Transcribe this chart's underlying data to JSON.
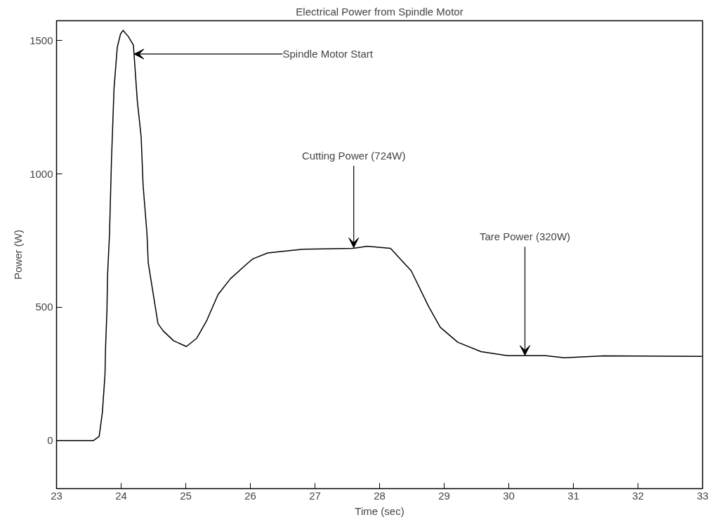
{
  "chart_data": {
    "type": "line",
    "title": "Electrical Power from Spindle Motor",
    "xlabel": "Time (sec)",
    "ylabel": "Power (W)",
    "x": [
      23,
      23.57,
      23.66,
      23.71,
      23.75,
      23.76,
      23.78,
      23.79,
      23.82,
      23.85,
      23.89,
      23.94,
      23.99,
      24.03,
      24.11,
      24.19,
      24.25,
      24.31,
      24.34,
      24.4,
      24.42,
      24.48,
      24.57,
      24.65,
      24.81,
      25.01,
      25.17,
      25.32,
      25.5,
      25.69,
      25.96,
      26.04,
      26.27,
      26.81,
      27.58,
      27.81,
      28.17,
      28.49,
      28.76,
      28.94,
      29.21,
      29.57,
      29.98,
      30.57,
      30.86,
      31.47,
      32.99
    ],
    "series": [
      {
        "color": "#000000",
        "values": [
          0,
          0,
          16,
          107,
          248,
          357,
          485,
          621,
          776,
          1048,
          1321,
          1475,
          1525,
          1539,
          1516,
          1484,
          1275,
          1139,
          957,
          776,
          666,
          575,
          439,
          412,
          375,
          353,
          384,
          448,
          548,
          607,
          666,
          682,
          704,
          718,
          721,
          729,
          721,
          637,
          503,
          425,
          369,
          334,
          319,
          319,
          311,
          318,
          316
        ]
      }
    ],
    "xlim": [
      23,
      33
    ],
    "ylim": [
      -180,
      1575
    ],
    "xticks": [
      23,
      24,
      25,
      26,
      27,
      28,
      29,
      30,
      31,
      32,
      33
    ],
    "yticks": [
      0,
      500,
      1000,
      1500
    ],
    "grid": false,
    "marker": "none",
    "line_style": "solid",
    "annotations": [
      {
        "text": "Spindle Motor Start",
        "x": 24.2,
        "y": 1450
      },
      {
        "text": "Cutting Power (724W)",
        "x": 27.6,
        "y": 724
      },
      {
        "text": "Tare Power (320W)",
        "x": 30.25,
        "y": 320
      }
    ]
  }
}
